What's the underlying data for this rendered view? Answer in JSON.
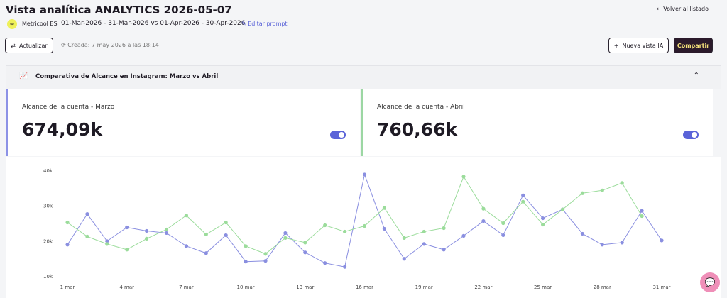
{
  "header": {
    "title": "Vista analítica ANALYTICS 2026-05-07",
    "back": "Volver al listado",
    "account": "Metricool ES",
    "date_range": "01-Mar-2026 - 31-Mar-2026 vs 01-Apr-2026 - 30-Apr-2026",
    "edit": "Editar prompt",
    "refresh": "Actualizar",
    "created": "Creada: 7 may 2026 a las 18:14",
    "new_view": "Nueva vista IA",
    "share": "Compartir"
  },
  "panel": {
    "title": "Comparativa de Alcance en Instagram: Marzo vs Abril",
    "cards": [
      {
        "value": "674,09k"
      },
      {
        "value": "760,66k"
      }
    ]
  },
  "chart_data": {
    "type": "line",
    "categories": [
      "1 mar",
      null,
      null,
      "4 mar",
      null,
      null,
      "7 mar",
      null,
      null,
      "10 mar",
      null,
      null,
      "13 mar",
      null,
      null,
      "16 mar",
      null,
      null,
      "19 mar",
      null,
      null,
      "22 mar",
      null,
      null,
      "25 mar",
      null,
      null,
      "28 mar",
      null,
      null,
      "31 mar"
    ],
    "series": [
      {
        "name": "Alcance de la cuenta - Marzo",
        "color": "#8a8fe0",
        "values": [
          19100,
          27800,
          20100,
          24000,
          23000,
          22400,
          18700,
          16700,
          21800,
          14300,
          14500,
          22400,
          16900,
          13900,
          12800,
          39000,
          23600,
          15100,
          19300,
          17700,
          21600,
          25800,
          21800,
          33100,
          26600,
          29100,
          22200,
          19100,
          19700,
          28700,
          20300
        ]
      },
      {
        "name": "Alcance de la cuenta - Abril",
        "color": "#9bdc9b",
        "values": [
          25400,
          21400,
          19300,
          17700,
          20800,
          23400,
          27400,
          22000,
          25400,
          18700,
          16500,
          21000,
          19700,
          24600,
          22800,
          24400,
          29500,
          21000,
          22800,
          23800,
          38400,
          29300,
          25200,
          31300,
          24800,
          29100,
          33700,
          34500,
          36600,
          27200,
          null
        ]
      }
    ],
    "ylim": [
      8000,
      41000
    ],
    "yticks": [
      {
        "value": 10000,
        "label": "10k"
      },
      {
        "value": 20000,
        "label": "20k"
      },
      {
        "value": 30000,
        "label": "30k"
      },
      {
        "value": 40000,
        "label": "40k"
      }
    ],
    "grid": false
  }
}
